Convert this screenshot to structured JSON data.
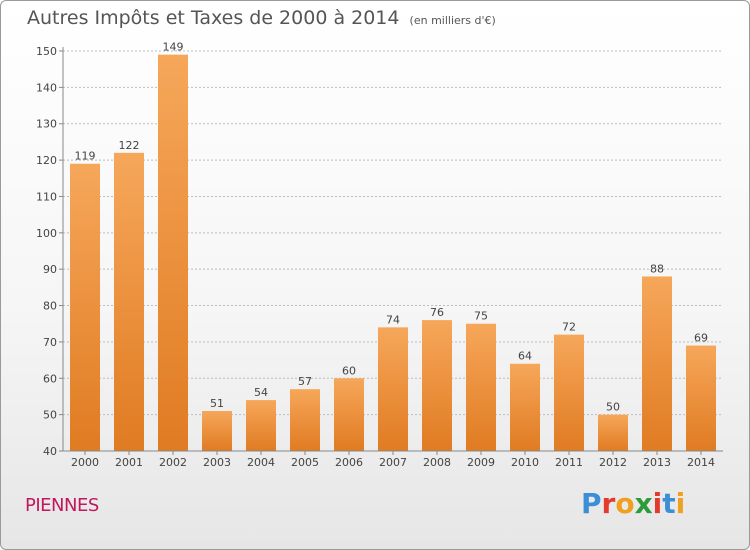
{
  "title": "Autres Impôts et Taxes de 2000 à 2014",
  "title_unit": "(en milliers d'€)",
  "commune": "PIENNES",
  "logo": {
    "text": "Proxiti",
    "letters": [
      {
        "ch": "P",
        "color": "#3b8fd6"
      },
      {
        "ch": "r",
        "color": "#e23b2e"
      },
      {
        "ch": "o",
        "color": "#f0a020"
      },
      {
        "ch": "x",
        "color": "#2e9b3a"
      },
      {
        "ch": "i",
        "color": "#e23b2e"
      },
      {
        "ch": "t",
        "color": "#3b8fd6"
      },
      {
        "ch": "i",
        "color": "#f0a020"
      }
    ]
  },
  "colors": {
    "bar_light": "#f6a75a",
    "bar_dark": "#e07b22",
    "axis": "#888888",
    "grid": "#bdbdbd",
    "text": "#444444"
  },
  "chart_data": {
    "type": "bar",
    "categories": [
      "2000",
      "2001",
      "2002",
      "2003",
      "2004",
      "2005",
      "2006",
      "2007",
      "2008",
      "2009",
      "2010",
      "2011",
      "2012",
      "2013",
      "2014"
    ],
    "values": [
      119,
      122,
      149,
      51,
      54,
      57,
      60,
      74,
      76,
      75,
      64,
      72,
      50,
      88,
      69
    ],
    "ylim": [
      40,
      150
    ],
    "yticks": [
      40,
      50,
      60,
      70,
      80,
      90,
      100,
      110,
      120,
      130,
      140,
      150
    ],
    "grid": true,
    "title": "Autres Impôts et Taxes de 2000 à 2014",
    "xlabel": "",
    "ylabel": ""
  }
}
